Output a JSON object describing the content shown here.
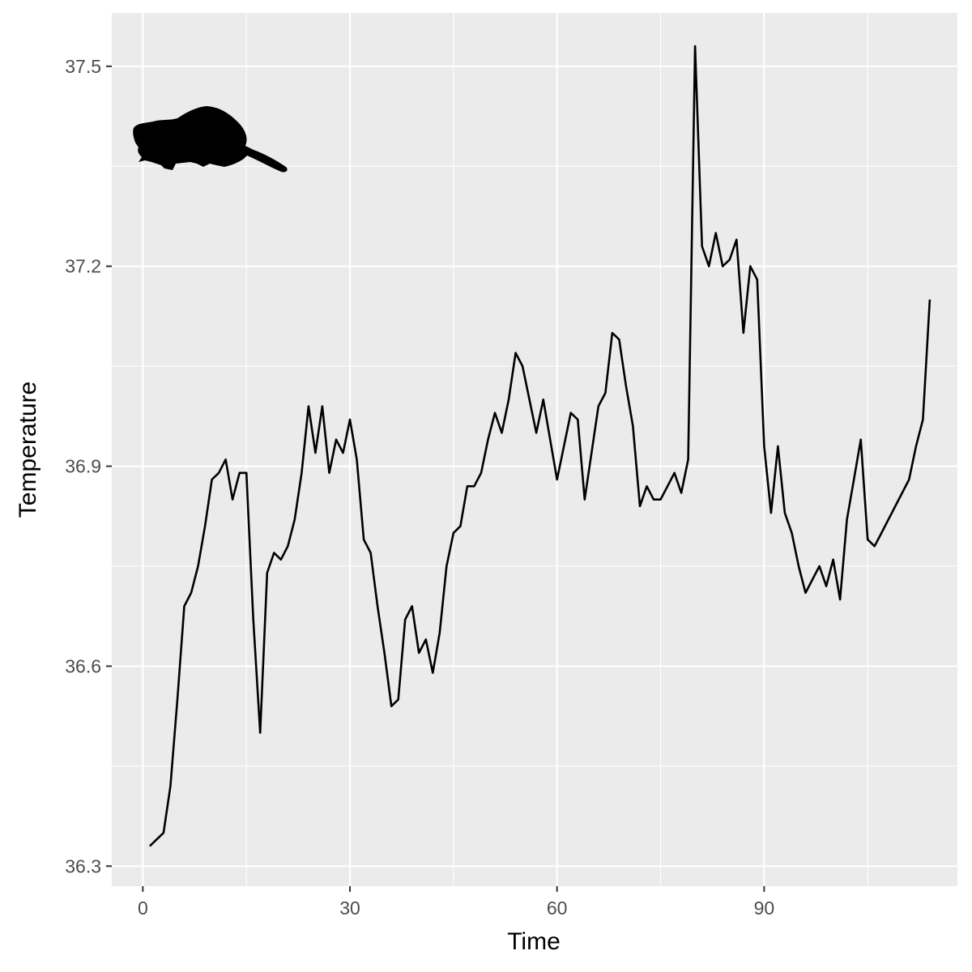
{
  "chart_data": {
    "type": "line",
    "xlabel": "Time",
    "ylabel": "Temperature",
    "xlim": [
      -4.5,
      118
    ],
    "ylim": [
      36.27,
      37.58
    ],
    "x_ticks": [
      0,
      30,
      60,
      90
    ],
    "x_minor_ticks": [
      15,
      45,
      75,
      105
    ],
    "y_ticks": [
      36.3,
      36.6,
      36.9,
      37.2,
      37.5
    ],
    "y_minor_ticks": [
      36.45,
      36.75,
      37.05,
      37.35
    ],
    "grid": true,
    "icon": "beaver-silhouette-icon",
    "colors": {
      "panel": "#ebebeb",
      "grid": "#ffffff",
      "line": "#000000",
      "tick_text": "#4d4d4d",
      "tick_mark": "#333333"
    },
    "series": [
      {
        "x": [
          1,
          3,
          4,
          5,
          6,
          7,
          8,
          9,
          10,
          11,
          12,
          13,
          14,
          15,
          16,
          17,
          18,
          19,
          20,
          21,
          22,
          23,
          24,
          25,
          26,
          27,
          28,
          29,
          30,
          31,
          32,
          33,
          34,
          35,
          36,
          37,
          38,
          39,
          40,
          41,
          42,
          43,
          44,
          45,
          46,
          47,
          48,
          49,
          50,
          51,
          52,
          53,
          54,
          55,
          56,
          57,
          58,
          59,
          60,
          61,
          62,
          63,
          64,
          65,
          66,
          67,
          68,
          69,
          70,
          71,
          72,
          73,
          74,
          75,
          76,
          77,
          78,
          79,
          80,
          81,
          82,
          83,
          84,
          85,
          86,
          87,
          88,
          89,
          90,
          91,
          92,
          93,
          94,
          95,
          96,
          97,
          98,
          99,
          100,
          101,
          102,
          103,
          104,
          105,
          106,
          107,
          108,
          109,
          110,
          111,
          112,
          113,
          114
        ],
        "values": [
          36.33,
          36.35,
          36.42,
          36.55,
          36.69,
          36.71,
          36.75,
          36.81,
          36.88,
          36.89,
          36.91,
          36.85,
          36.89,
          36.89,
          36.67,
          36.5,
          36.74,
          36.77,
          36.76,
          36.78,
          36.82,
          36.89,
          36.99,
          36.92,
          36.99,
          36.89,
          36.94,
          36.92,
          36.97,
          36.91,
          36.79,
          36.77,
          36.69,
          36.62,
          36.54,
          36.55,
          36.67,
          36.69,
          36.62,
          36.64,
          36.59,
          36.65,
          36.75,
          36.8,
          36.81,
          36.87,
          36.87,
          36.89,
          36.94,
          36.98,
          36.95,
          37.0,
          37.07,
          37.05,
          37.0,
          36.95,
          37.0,
          36.94,
          36.88,
          36.93,
          36.98,
          36.97,
          36.85,
          36.92,
          36.99,
          37.01,
          37.1,
          37.09,
          37.02,
          36.96,
          36.84,
          36.87,
          36.85,
          36.85,
          36.87,
          36.89,
          36.86,
          36.91,
          37.53,
          37.23,
          37.2,
          37.25,
          37.2,
          37.21,
          37.24,
          37.1,
          37.2,
          37.18,
          36.93,
          36.83,
          36.93,
          36.83,
          36.8,
          36.75,
          36.71,
          36.73,
          36.75,
          36.72,
          36.76,
          36.7,
          36.82,
          36.88,
          36.94,
          36.79,
          36.78,
          36.8,
          36.82,
          36.84,
          36.86,
          36.88,
          36.93,
          36.97,
          37.15
        ]
      }
    ]
  }
}
